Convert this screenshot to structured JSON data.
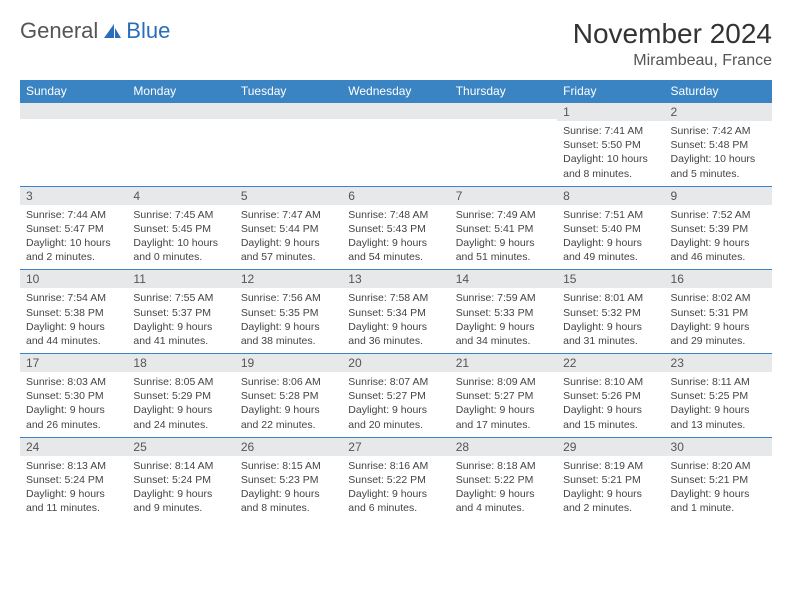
{
  "brand": {
    "word1": "General",
    "word2": "Blue"
  },
  "title": "November 2024",
  "location": "Mirambeau, France",
  "colors": {
    "header_bg": "#3b84c4",
    "header_text": "#ffffff",
    "rule": "#3b84c4",
    "daynum_bg": "#e7e8ea",
    "text": "#333333",
    "brand_blue": "#2a6db9"
  },
  "dow": [
    "Sunday",
    "Monday",
    "Tuesday",
    "Wednesday",
    "Thursday",
    "Friday",
    "Saturday"
  ],
  "weeks": [
    [
      {
        "num": "",
        "sunrise": "",
        "sunset": "",
        "daylight": ""
      },
      {
        "num": "",
        "sunrise": "",
        "sunset": "",
        "daylight": ""
      },
      {
        "num": "",
        "sunrise": "",
        "sunset": "",
        "daylight": ""
      },
      {
        "num": "",
        "sunrise": "",
        "sunset": "",
        "daylight": ""
      },
      {
        "num": "",
        "sunrise": "",
        "sunset": "",
        "daylight": ""
      },
      {
        "num": "1",
        "sunrise": "Sunrise: 7:41 AM",
        "sunset": "Sunset: 5:50 PM",
        "daylight": "Daylight: 10 hours and 8 minutes."
      },
      {
        "num": "2",
        "sunrise": "Sunrise: 7:42 AM",
        "sunset": "Sunset: 5:48 PM",
        "daylight": "Daylight: 10 hours and 5 minutes."
      }
    ],
    [
      {
        "num": "3",
        "sunrise": "Sunrise: 7:44 AM",
        "sunset": "Sunset: 5:47 PM",
        "daylight": "Daylight: 10 hours and 2 minutes."
      },
      {
        "num": "4",
        "sunrise": "Sunrise: 7:45 AM",
        "sunset": "Sunset: 5:45 PM",
        "daylight": "Daylight: 10 hours and 0 minutes."
      },
      {
        "num": "5",
        "sunrise": "Sunrise: 7:47 AM",
        "sunset": "Sunset: 5:44 PM",
        "daylight": "Daylight: 9 hours and 57 minutes."
      },
      {
        "num": "6",
        "sunrise": "Sunrise: 7:48 AM",
        "sunset": "Sunset: 5:43 PM",
        "daylight": "Daylight: 9 hours and 54 minutes."
      },
      {
        "num": "7",
        "sunrise": "Sunrise: 7:49 AM",
        "sunset": "Sunset: 5:41 PM",
        "daylight": "Daylight: 9 hours and 51 minutes."
      },
      {
        "num": "8",
        "sunrise": "Sunrise: 7:51 AM",
        "sunset": "Sunset: 5:40 PM",
        "daylight": "Daylight: 9 hours and 49 minutes."
      },
      {
        "num": "9",
        "sunrise": "Sunrise: 7:52 AM",
        "sunset": "Sunset: 5:39 PM",
        "daylight": "Daylight: 9 hours and 46 minutes."
      }
    ],
    [
      {
        "num": "10",
        "sunrise": "Sunrise: 7:54 AM",
        "sunset": "Sunset: 5:38 PM",
        "daylight": "Daylight: 9 hours and 44 minutes."
      },
      {
        "num": "11",
        "sunrise": "Sunrise: 7:55 AM",
        "sunset": "Sunset: 5:37 PM",
        "daylight": "Daylight: 9 hours and 41 minutes."
      },
      {
        "num": "12",
        "sunrise": "Sunrise: 7:56 AM",
        "sunset": "Sunset: 5:35 PM",
        "daylight": "Daylight: 9 hours and 38 minutes."
      },
      {
        "num": "13",
        "sunrise": "Sunrise: 7:58 AM",
        "sunset": "Sunset: 5:34 PM",
        "daylight": "Daylight: 9 hours and 36 minutes."
      },
      {
        "num": "14",
        "sunrise": "Sunrise: 7:59 AM",
        "sunset": "Sunset: 5:33 PM",
        "daylight": "Daylight: 9 hours and 34 minutes."
      },
      {
        "num": "15",
        "sunrise": "Sunrise: 8:01 AM",
        "sunset": "Sunset: 5:32 PM",
        "daylight": "Daylight: 9 hours and 31 minutes."
      },
      {
        "num": "16",
        "sunrise": "Sunrise: 8:02 AM",
        "sunset": "Sunset: 5:31 PM",
        "daylight": "Daylight: 9 hours and 29 minutes."
      }
    ],
    [
      {
        "num": "17",
        "sunrise": "Sunrise: 8:03 AM",
        "sunset": "Sunset: 5:30 PM",
        "daylight": "Daylight: 9 hours and 26 minutes."
      },
      {
        "num": "18",
        "sunrise": "Sunrise: 8:05 AM",
        "sunset": "Sunset: 5:29 PM",
        "daylight": "Daylight: 9 hours and 24 minutes."
      },
      {
        "num": "19",
        "sunrise": "Sunrise: 8:06 AM",
        "sunset": "Sunset: 5:28 PM",
        "daylight": "Daylight: 9 hours and 22 minutes."
      },
      {
        "num": "20",
        "sunrise": "Sunrise: 8:07 AM",
        "sunset": "Sunset: 5:27 PM",
        "daylight": "Daylight: 9 hours and 20 minutes."
      },
      {
        "num": "21",
        "sunrise": "Sunrise: 8:09 AM",
        "sunset": "Sunset: 5:27 PM",
        "daylight": "Daylight: 9 hours and 17 minutes."
      },
      {
        "num": "22",
        "sunrise": "Sunrise: 8:10 AM",
        "sunset": "Sunset: 5:26 PM",
        "daylight": "Daylight: 9 hours and 15 minutes."
      },
      {
        "num": "23",
        "sunrise": "Sunrise: 8:11 AM",
        "sunset": "Sunset: 5:25 PM",
        "daylight": "Daylight: 9 hours and 13 minutes."
      }
    ],
    [
      {
        "num": "24",
        "sunrise": "Sunrise: 8:13 AM",
        "sunset": "Sunset: 5:24 PM",
        "daylight": "Daylight: 9 hours and 11 minutes."
      },
      {
        "num": "25",
        "sunrise": "Sunrise: 8:14 AM",
        "sunset": "Sunset: 5:24 PM",
        "daylight": "Daylight: 9 hours and 9 minutes."
      },
      {
        "num": "26",
        "sunrise": "Sunrise: 8:15 AM",
        "sunset": "Sunset: 5:23 PM",
        "daylight": "Daylight: 9 hours and 8 minutes."
      },
      {
        "num": "27",
        "sunrise": "Sunrise: 8:16 AM",
        "sunset": "Sunset: 5:22 PM",
        "daylight": "Daylight: 9 hours and 6 minutes."
      },
      {
        "num": "28",
        "sunrise": "Sunrise: 8:18 AM",
        "sunset": "Sunset: 5:22 PM",
        "daylight": "Daylight: 9 hours and 4 minutes."
      },
      {
        "num": "29",
        "sunrise": "Sunrise: 8:19 AM",
        "sunset": "Sunset: 5:21 PM",
        "daylight": "Daylight: 9 hours and 2 minutes."
      },
      {
        "num": "30",
        "sunrise": "Sunrise: 8:20 AM",
        "sunset": "Sunset: 5:21 PM",
        "daylight": "Daylight: 9 hours and 1 minute."
      }
    ]
  ]
}
